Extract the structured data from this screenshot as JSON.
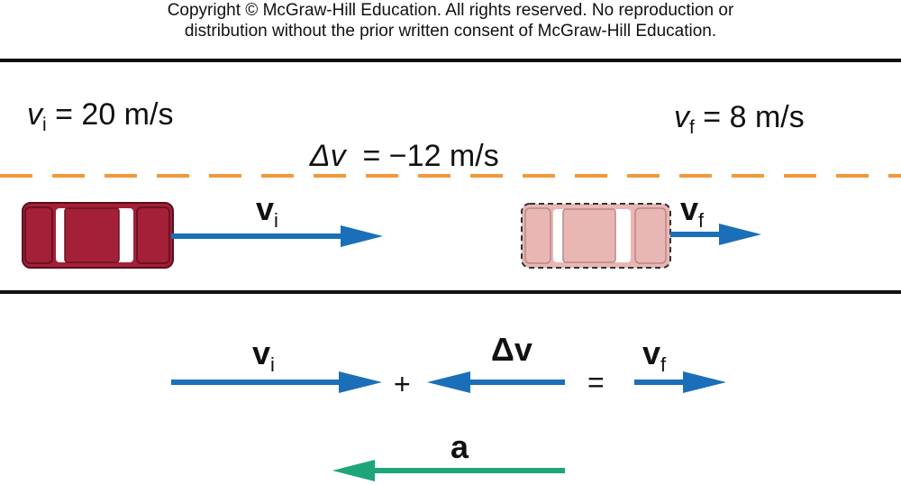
{
  "copyright": {
    "line1": "Copyright © McGraw-Hill Education.  All rights reserved. No reproduction or",
    "line2": "distribution without the prior written consent of McGraw-Hill Education."
  },
  "labels": {
    "vi_symbol": "v",
    "vi_sub": "i",
    "vi_value": " = 20 m/s",
    "dv_symbol": "Δv",
    "dv_value": "  = −12 m/s",
    "vf_symbol": "v",
    "vf_sub": "f",
    "vf_value": " = 8 m/s"
  },
  "vectors": {
    "vi_symbol": "v",
    "vi_sub": "i",
    "vf_symbol": "v",
    "vf_sub": "f",
    "dv_label": "Δv",
    "a_label": "a",
    "plus": "+",
    "equals": "="
  },
  "colors": {
    "velocity": "#1a6fb8",
    "acceleration": "#1ea67a",
    "car_initial": "#a41f38",
    "car_final": "#e8b7b4",
    "lane": "#f0993a",
    "road_edge": "#111111"
  }
}
